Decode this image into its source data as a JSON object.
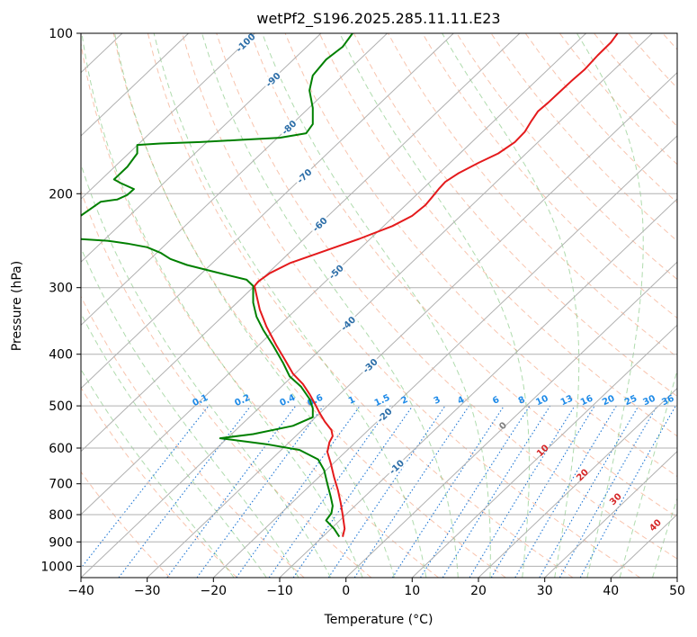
{
  "chart_data": {
    "type": "line",
    "title": "wetPf2_S196.2025.285.11.11.E23",
    "xlabel": "Temperature (°C)",
    "ylabel": "Pressure (hPa)",
    "xlim": [
      -40,
      50
    ],
    "ylim": [
      1050,
      100
    ],
    "y_scale": "log",
    "grid": true,
    "x_ticks": [
      -40,
      -30,
      -20,
      -10,
      0,
      10,
      20,
      30,
      40,
      50
    ],
    "y_ticks": [
      100,
      200,
      300,
      400,
      500,
      600,
      700,
      800,
      900,
      1000
    ],
    "temperature_series": {
      "color": "#e41a1c",
      "points": [
        [
          -0.5,
          880
        ],
        [
          -0.2,
          850
        ],
        [
          -0.5,
          800
        ],
        [
          -0.8,
          760
        ],
        [
          -1.2,
          720
        ],
        [
          -1.8,
          680
        ],
        [
          -2.3,
          640
        ],
        [
          -2.8,
          610
        ],
        [
          -2.5,
          585
        ],
        [
          -2.0,
          570
        ],
        [
          -2.2,
          555
        ],
        [
          -3.2,
          535
        ],
        [
          -4.0,
          515
        ],
        [
          -4.7,
          495
        ],
        [
          -5.5,
          475
        ],
        [
          -6.5,
          455
        ],
        [
          -8.0,
          435
        ],
        [
          -9.2,
          410
        ],
        [
          -10.5,
          385
        ],
        [
          -12.0,
          355
        ],
        [
          -13.0,
          330
        ],
        [
          -13.5,
          310
        ],
        [
          -13.8,
          298
        ],
        [
          -13.2,
          292
        ],
        [
          -11.5,
          282
        ],
        [
          -8.5,
          270
        ],
        [
          -4.0,
          258
        ],
        [
          2.0,
          243
        ],
        [
          7.0,
          230
        ],
        [
          10.0,
          220
        ],
        [
          12.0,
          210
        ],
        [
          13.0,
          203
        ],
        [
          14.0,
          196
        ],
        [
          15.0,
          190
        ],
        [
          17.0,
          183
        ],
        [
          20.0,
          175
        ],
        [
          23.0,
          168
        ],
        [
          25.5,
          160
        ],
        [
          27.0,
          153
        ],
        [
          28.0,
          146
        ],
        [
          29.0,
          140
        ],
        [
          30.5,
          135
        ],
        [
          32.5,
          128
        ],
        [
          34.0,
          123
        ],
        [
          36.0,
          117
        ],
        [
          38.0,
          110
        ],
        [
          40.0,
          104
        ],
        [
          41.0,
          100
        ]
      ]
    },
    "dewpoint_series": {
      "color": "#008000",
      "points": [
        [
          -1.0,
          880
        ],
        [
          -1.8,
          850
        ],
        [
          -3.0,
          820
        ],
        [
          -2.2,
          795
        ],
        [
          -2.0,
          770
        ],
        [
          -2.3,
          740
        ],
        [
          -2.8,
          700
        ],
        [
          -3.3,
          660
        ],
        [
          -4.2,
          630
        ],
        [
          -7.0,
          605
        ],
        [
          -12.0,
          590
        ],
        [
          -19.0,
          575
        ],
        [
          -14.0,
          565
        ],
        [
          -8.0,
          545
        ],
        [
          -5.0,
          525
        ],
        [
          -5.0,
          505
        ],
        [
          -5.5,
          485
        ],
        [
          -6.8,
          460
        ],
        [
          -8.5,
          440
        ],
        [
          -9.5,
          415
        ],
        [
          -11.0,
          385
        ],
        [
          -12.5,
          360
        ],
        [
          -13.5,
          340
        ],
        [
          -14.0,
          320
        ],
        [
          -14.0,
          298
        ],
        [
          -15.0,
          290
        ],
        [
          -20.0,
          280
        ],
        [
          -24.0,
          272
        ],
        [
          -26.5,
          265
        ],
        [
          -28.0,
          258
        ],
        [
          -30.0,
          252
        ],
        [
          -33.0,
          248
        ],
        [
          -36.0,
          245
        ],
        [
          -40.5,
          243
        ],
        [
          -40.5,
          222
        ],
        [
          -37.0,
          207
        ],
        [
          -34.5,
          205
        ],
        [
          -33.0,
          201
        ],
        [
          -32.0,
          196
        ],
        [
          -34.0,
          191
        ],
        [
          -35.0,
          188
        ],
        [
          -33.0,
          178
        ],
        [
          -31.5,
          168
        ],
        [
          -31.5,
          162
        ],
        [
          -28.0,
          161
        ],
        [
          -22.0,
          160
        ],
        [
          -16.0,
          158.5
        ],
        [
          -10.0,
          157
        ],
        [
          -6.0,
          154
        ],
        [
          -5.0,
          148
        ],
        [
          -5.0,
          138
        ],
        [
          -5.5,
          128
        ],
        [
          -5.0,
          120
        ],
        [
          -3.0,
          112
        ],
        [
          -0.5,
          106
        ],
        [
          0.5,
          102
        ],
        [
          1.0,
          100
        ]
      ]
    },
    "isotherm_labels": [
      "-100",
      "-90",
      "-80",
      "-70",
      "-60",
      "-50",
      "-40",
      "-30",
      "-20",
      "-10"
    ],
    "mixing_ratio_labels": [
      "0.1",
      "0.2",
      "0.4",
      "0.6",
      "1",
      "1.5",
      "2",
      "3",
      "4",
      "6",
      "8",
      "10",
      "13",
      "16",
      "20",
      "25",
      "30",
      "36"
    ],
    "moist_adiabat_labels": [
      "0",
      "10",
      "20",
      "30",
      "40"
    ]
  }
}
